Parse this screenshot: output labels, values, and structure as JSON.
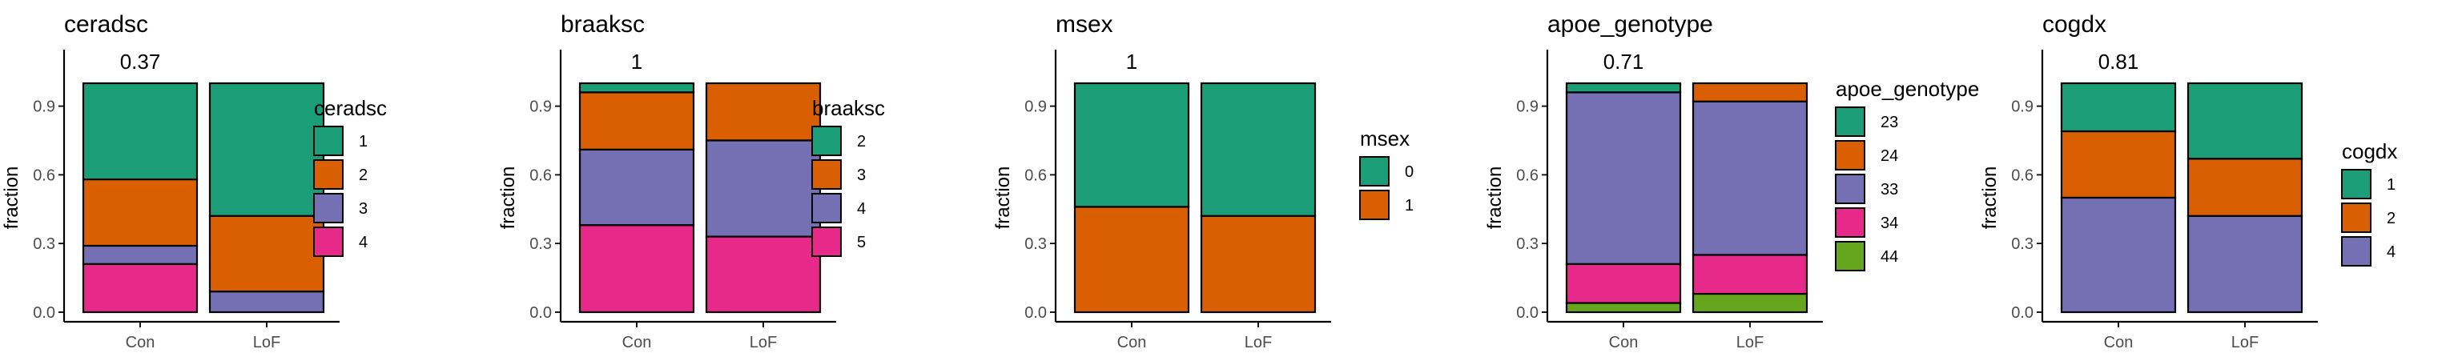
{
  "colors": {
    "green": "#1b9e77",
    "orange": "#d95f02",
    "purple": "#7570b3",
    "pink": "#e7298a",
    "lightgreen": "#66a61e",
    "axis": "#000000",
    "tick_text": "#4d4d4d"
  },
  "chart_data": [
    {
      "type": "bar",
      "stacked": true,
      "title": "ceradsc",
      "pvalue": "0.37",
      "ylabel": "fraction",
      "xlabel": "",
      "ylim": [
        0,
        1
      ],
      "yticks": [
        "0.0",
        "0.3",
        "0.6",
        "0.9"
      ],
      "categories": [
        "Con",
        "LoF"
      ],
      "legend_title": "ceradsc",
      "legend_position": "right",
      "series": [
        {
          "name": "1",
          "color": "#1b9e77",
          "values": [
            0.42,
            0.58
          ]
        },
        {
          "name": "2",
          "color": "#d95f02",
          "values": [
            0.29,
            0.33
          ]
        },
        {
          "name": "3",
          "color": "#7570b3",
          "values": [
            0.08,
            0.09
          ]
        },
        {
          "name": "4",
          "color": "#e7298a",
          "values": [
            0.21,
            0.0
          ]
        }
      ]
    },
    {
      "type": "bar",
      "stacked": true,
      "title": "braaksc",
      "pvalue": "1",
      "ylabel": "fraction",
      "xlabel": "",
      "ylim": [
        0,
        1
      ],
      "yticks": [
        "0.0",
        "0.3",
        "0.6",
        "0.9"
      ],
      "categories": [
        "Con",
        "LoF"
      ],
      "legend_title": "braaksc",
      "legend_position": "right",
      "series": [
        {
          "name": "2",
          "color": "#1b9e77",
          "values": [
            0.04,
            0.0
          ]
        },
        {
          "name": "3",
          "color": "#d95f02",
          "values": [
            0.25,
            0.25
          ]
        },
        {
          "name": "4",
          "color": "#7570b3",
          "values": [
            0.33,
            0.42
          ]
        },
        {
          "name": "5",
          "color": "#e7298a",
          "values": [
            0.38,
            0.33
          ]
        }
      ]
    },
    {
      "type": "bar",
      "stacked": true,
      "title": "msex",
      "pvalue": "1",
      "ylabel": "fraction",
      "xlabel": "",
      "ylim": [
        0,
        1
      ],
      "yticks": [
        "0.0",
        "0.3",
        "0.6",
        "0.9"
      ],
      "categories": [
        "Con",
        "LoF"
      ],
      "legend_title": "msex",
      "legend_position": "right",
      "series": [
        {
          "name": "0",
          "color": "#1b9e77",
          "values": [
            0.54,
            0.58
          ]
        },
        {
          "name": "1",
          "color": "#d95f02",
          "values": [
            0.46,
            0.42
          ]
        }
      ]
    },
    {
      "type": "bar",
      "stacked": true,
      "title": "apoe_genotype",
      "pvalue": "0.71",
      "ylabel": "fraction",
      "xlabel": "",
      "ylim": [
        0,
        1
      ],
      "yticks": [
        "0.0",
        "0.3",
        "0.6",
        "0.9"
      ],
      "categories": [
        "Con",
        "LoF"
      ],
      "legend_title": "apoe_genotype",
      "legend_position": "right",
      "series": [
        {
          "name": "23",
          "color": "#1b9e77",
          "values": [
            0.04,
            0.0
          ]
        },
        {
          "name": "24",
          "color": "#d95f02",
          "values": [
            0.0,
            0.08
          ]
        },
        {
          "name": "33",
          "color": "#7570b3",
          "values": [
            0.75,
            0.67
          ]
        },
        {
          "name": "34",
          "color": "#e7298a",
          "values": [
            0.17,
            0.17
          ]
        },
        {
          "name": "44",
          "color": "#66a61e",
          "values": [
            0.04,
            0.08
          ]
        }
      ]
    },
    {
      "type": "bar",
      "stacked": true,
      "title": "cogdx",
      "pvalue": "0.81",
      "ylabel": "fraction",
      "xlabel": "",
      "ylim": [
        0,
        1
      ],
      "yticks": [
        "0.0",
        "0.3",
        "0.6",
        "0.9"
      ],
      "categories": [
        "Con",
        "LoF"
      ],
      "legend_title": "cogdx",
      "legend_position": "right",
      "series": [
        {
          "name": "1",
          "color": "#1b9e77",
          "values": [
            0.21,
            0.33
          ]
        },
        {
          "name": "2",
          "color": "#d95f02",
          "values": [
            0.29,
            0.25
          ]
        },
        {
          "name": "4",
          "color": "#7570b3",
          "values": [
            0.5,
            0.42
          ]
        }
      ]
    }
  ]
}
